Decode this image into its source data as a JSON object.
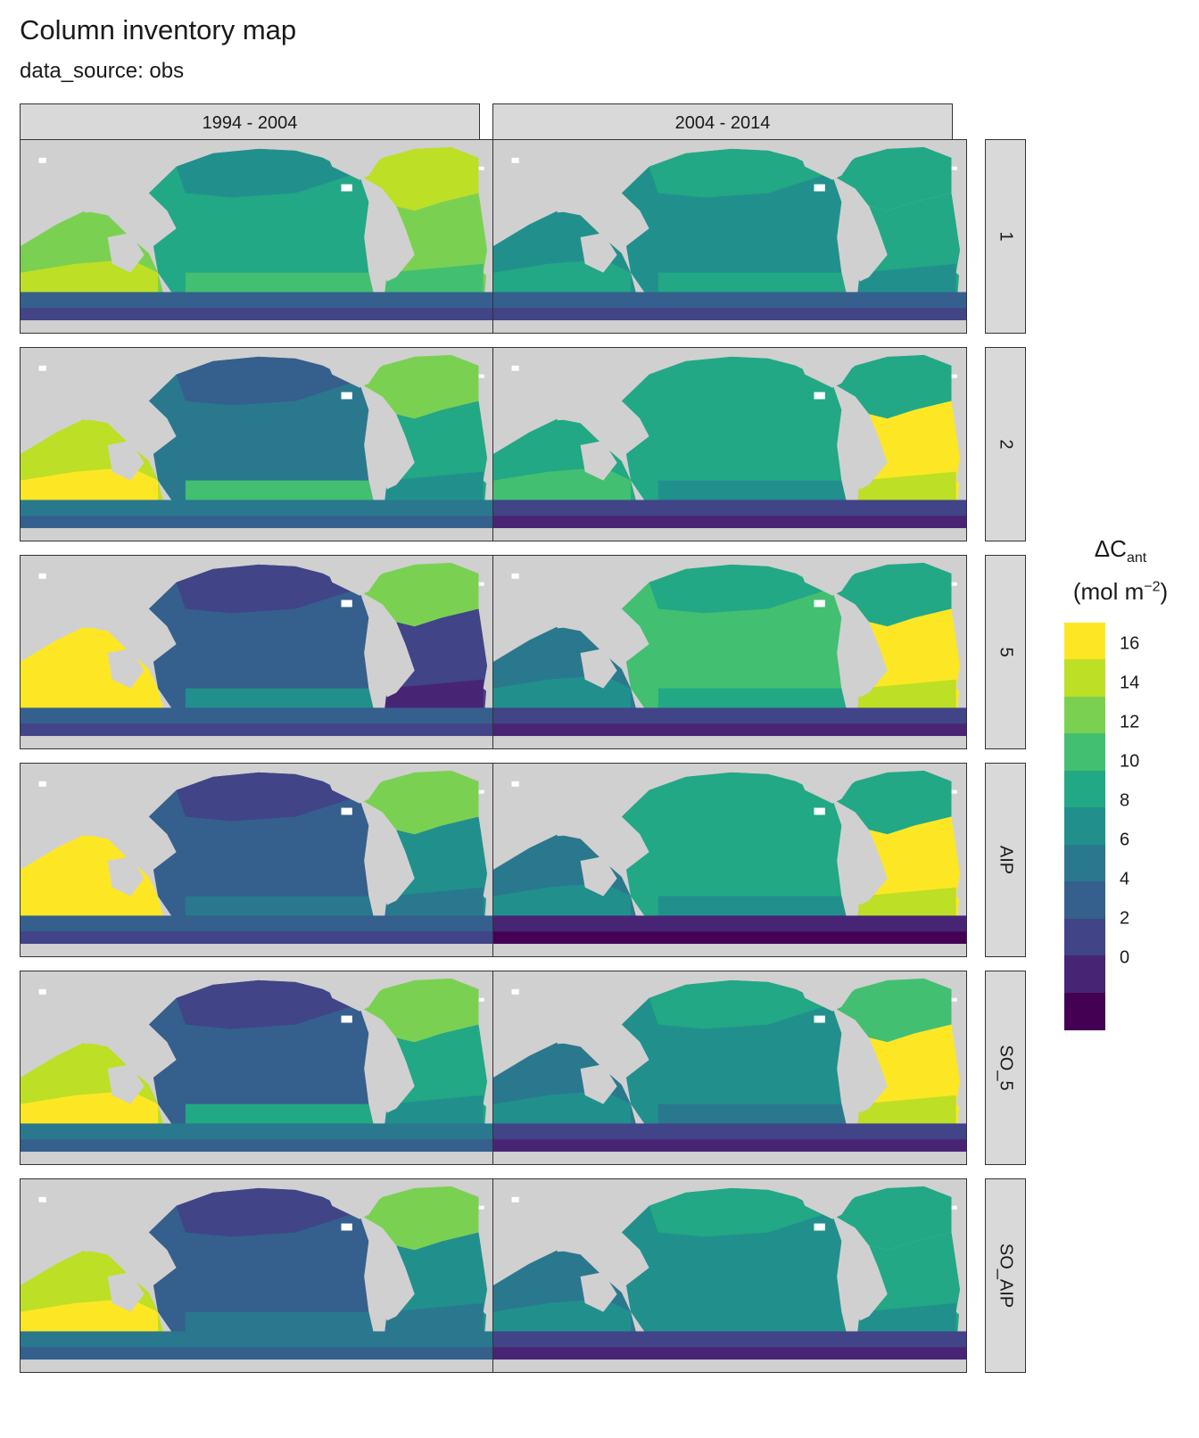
{
  "title": "Column inventory map",
  "subtitle": "data_source: obs",
  "columns": [
    "1994 - 2004",
    "2004 - 2014"
  ],
  "rows": [
    "1",
    "2",
    "5",
    "AIP",
    "SO_5",
    "SO_AIP"
  ],
  "legend": {
    "title_main": "ΔC",
    "title_sub": "ant",
    "unit_prefix": "(mol m",
    "unit_sup": "−2",
    "unit_suffix": ")",
    "colors": [
      "#440154",
      "#482475",
      "#414487",
      "#355f8d",
      "#2a788e",
      "#21908d",
      "#22a884",
      "#43bf71",
      "#7ad151",
      "#bddf26",
      "#fde725"
    ],
    "ticks": [
      "16",
      "14",
      "12",
      "10",
      "8",
      "6",
      "4",
      "2",
      "0"
    ]
  },
  "colors": {
    "land": "#d0d0d0",
    "ice": "#ffffff",
    "strip": "#d9d9d9"
  },
  "panels": [
    {
      "row": "1",
      "col": "1994 - 2004",
      "pacific_north": 5,
      "pacific_tropics": 6,
      "pacific_south": 7,
      "atlantic_north": 9,
      "atlantic_south": 7,
      "indian": 8,
      "southern": 3
    },
    {
      "row": "1",
      "col": "2004 - 2014",
      "pacific_north": 6,
      "pacific_tropics": 5,
      "pacific_south": 6,
      "atlantic_north": 6,
      "atlantic_south": 5,
      "indian": 5,
      "southern": 3
    },
    {
      "row": "2",
      "col": "1994 - 2004",
      "pacific_north": 3,
      "pacific_tropics": 4,
      "pacific_south": 7,
      "atlantic_north": 8,
      "atlantic_south": 5,
      "indian": 9,
      "southern": 4
    },
    {
      "row": "2",
      "col": "2004 - 2014",
      "pacific_north": 6,
      "pacific_tropics": 6,
      "pacific_south": 5,
      "atlantic_north": 6,
      "atlantic_south": 9,
      "indian": 6,
      "southern": 2
    },
    {
      "row": "5",
      "col": "1994 - 2004",
      "pacific_north": 2,
      "pacific_tropics": 3,
      "pacific_south": 5,
      "atlantic_north": 8,
      "atlantic_south": 1,
      "indian": 10,
      "southern": 3
    },
    {
      "row": "5",
      "col": "2004 - 2014",
      "pacific_north": 6,
      "pacific_tropics": 7,
      "pacific_south": 6,
      "atlantic_north": 6,
      "atlantic_south": 9,
      "indian": 4,
      "southern": 2
    },
    {
      "row": "AIP",
      "col": "1994 - 2004",
      "pacific_north": 2,
      "pacific_tropics": 3,
      "pacific_south": 4,
      "atlantic_north": 8,
      "atlantic_south": 4,
      "indian": 10,
      "southern": 3
    },
    {
      "row": "AIP",
      "col": "2004 - 2014",
      "pacific_north": 6,
      "pacific_tropics": 6,
      "pacific_south": 5,
      "atlantic_north": 6,
      "atlantic_south": 9,
      "indian": 4,
      "southern": 1
    },
    {
      "row": "SO_5",
      "col": "1994 - 2004",
      "pacific_north": 2,
      "pacific_tropics": 3,
      "pacific_south": 6,
      "atlantic_north": 8,
      "atlantic_south": 5,
      "indian": 9,
      "southern": 4
    },
    {
      "row": "SO_5",
      "col": "2004 - 2014",
      "pacific_north": 6,
      "pacific_tropics": 5,
      "pacific_south": 4,
      "atlantic_north": 7,
      "atlantic_south": 9,
      "indian": 4,
      "southern": 2
    },
    {
      "row": "SO_AIP",
      "col": "1994 - 2004",
      "pacific_north": 2,
      "pacific_tropics": 3,
      "pacific_south": 4,
      "atlantic_north": 8,
      "atlantic_south": 4,
      "indian": 9,
      "southern": 4
    },
    {
      "row": "SO_AIP",
      "col": "2004 - 2014",
      "pacific_north": 6,
      "pacific_tropics": 5,
      "pacific_south": 5,
      "atlantic_north": 6,
      "atlantic_south": 5,
      "indian": 4,
      "southern": 2
    }
  ]
}
